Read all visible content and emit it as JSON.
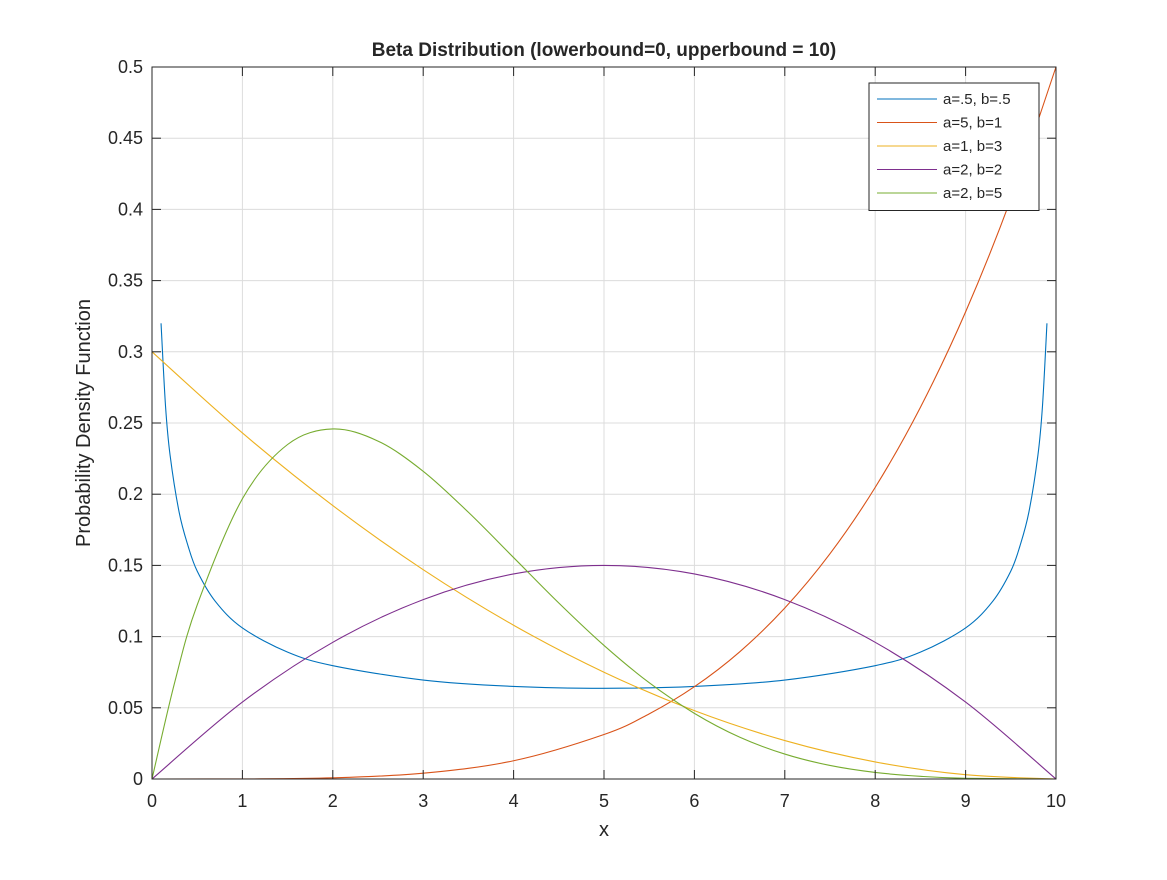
{
  "chart_data": {
    "type": "line",
    "title": "Beta Distribution (lowerbound=0, upperbound = 10)",
    "xlabel": "x",
    "ylabel": "Probability Density Function",
    "xlim": [
      0,
      10
    ],
    "ylim": [
      0,
      0.5
    ],
    "x_ticks": [
      0,
      1,
      2,
      3,
      4,
      5,
      6,
      7,
      8,
      9,
      10
    ],
    "x_tick_labels": [
      "0",
      "1",
      "2",
      "3",
      "4",
      "5",
      "6",
      "7",
      "8",
      "9",
      "10"
    ],
    "y_ticks": [
      0,
      0.05,
      0.1,
      0.15,
      0.2,
      0.25,
      0.3,
      0.35,
      0.4,
      0.45,
      0.5
    ],
    "y_tick_labels": [
      "0",
      "0.05",
      "0.1",
      "0.15",
      "0.2",
      "0.25",
      "0.3",
      "0.35",
      "0.4",
      "0.45",
      "0.5"
    ],
    "grid": true,
    "legend_position": "top-right",
    "series": [
      {
        "name": "a=.5, b=.5",
        "color": "#0072BD",
        "x": [
          0.1,
          0.15,
          0.2,
          0.3,
          0.4,
          0.5,
          0.7,
          1,
          1.5,
          2,
          3,
          4,
          5,
          6,
          7,
          8,
          8.5,
          9,
          9.3,
          9.5,
          9.6,
          9.7,
          9.8,
          9.85,
          9.9
        ],
        "y": [
          0.32,
          0.2615,
          0.2274,
          0.1874,
          0.1634,
          0.146,
          0.1248,
          0.1061,
          0.0891,
          0.0796,
          0.0695,
          0.065,
          0.0637,
          0.065,
          0.0695,
          0.0796,
          0.0891,
          0.1061,
          0.1248,
          0.146,
          0.1634,
          0.1874,
          0.2274,
          0.2615,
          0.32
        ]
      },
      {
        "name": "a=5, b=1",
        "color": "#D95319",
        "x": [
          0,
          1,
          2,
          3,
          4,
          5,
          5.5,
          6,
          6.5,
          7,
          7.5,
          8,
          8.5,
          9,
          9.5,
          10
        ],
        "y": [
          0,
          5e-05,
          0.0008,
          0.00405,
          0.0128,
          0.03125,
          0.04575,
          0.0648,
          0.08925,
          0.12005,
          0.1582,
          0.2048,
          0.261,
          0.32805,
          0.40725,
          0.5
        ]
      },
      {
        "name": "a=1, b=3",
        "color": "#EDB120",
        "x": [
          0,
          1,
          2,
          3,
          4,
          5,
          6,
          7,
          8,
          9,
          10
        ],
        "y": [
          0.3,
          0.243,
          0.192,
          0.147,
          0.108,
          0.075,
          0.048,
          0.027,
          0.012,
          0.003,
          0
        ]
      },
      {
        "name": "a=2, b=2",
        "color": "#7E2F8E",
        "x": [
          0,
          1,
          2,
          3,
          4,
          5,
          6,
          7,
          8,
          9,
          10
        ],
        "y": [
          0,
          0.054,
          0.096,
          0.126,
          0.144,
          0.15,
          0.144,
          0.126,
          0.096,
          0.054,
          0
        ]
      },
      {
        "name": "a=2, b=5",
        "color": "#77AC30",
        "x": [
          0,
          0.25,
          0.5,
          1,
          1.5,
          2,
          2.5,
          3,
          3.5,
          4,
          4.5,
          5,
          5.5,
          6,
          6.5,
          7,
          7.5,
          8,
          8.5,
          9,
          10
        ],
        "y": [
          0,
          0.0676,
          0.1222,
          0.1968,
          0.2349,
          0.2458,
          0.2373,
          0.2161,
          0.1873,
          0.1555,
          0.1236,
          0.0938,
          0.0676,
          0.0461,
          0.0294,
          0.0175,
          0.0095,
          0.0046,
          0.0019,
          0.0005,
          0
        ]
      }
    ]
  }
}
